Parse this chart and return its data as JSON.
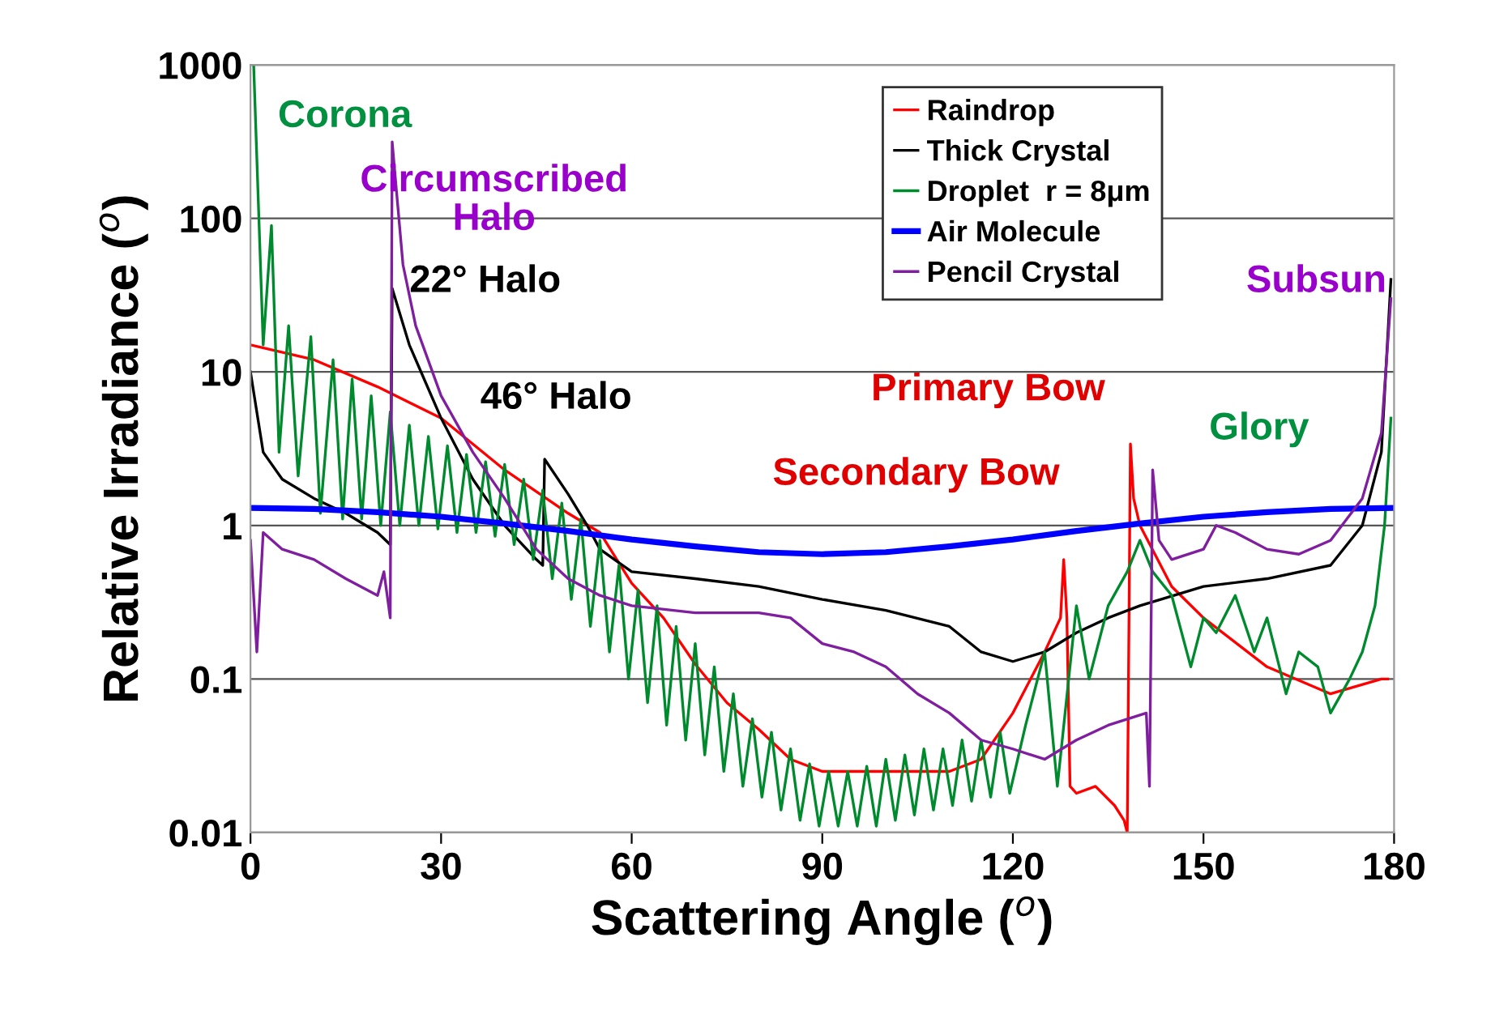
{
  "chart_data": {
    "type": "line",
    "xlabel": "Scattering Angle ($^{o}$)",
    "ylabel": "Relative Irradiance ($^{o}$)",
    "log": "y",
    "xlim": [
      0,
      180
    ],
    "ylim": [
      0.01,
      1000
    ],
    "xticks": [
      0,
      30,
      60,
      90,
      120,
      150,
      180
    ],
    "yticks": [
      0.01,
      0.1,
      1,
      10,
      100,
      1000
    ],
    "grid": "y",
    "legend": "top right",
    "line_style": "solid",
    "marker": "none",
    "series": [
      {
        "name": "Raindrop",
        "color": "#ff0000",
        "x": [
          0,
          10,
          20,
          30,
          40,
          50,
          55,
          60,
          65,
          70,
          75,
          80,
          85,
          90,
          100,
          110,
          115,
          120,
          125,
          127.5,
          128,
          128.5,
          129,
          130,
          133,
          136,
          137.5,
          138,
          138.5,
          139,
          140,
          145,
          150,
          160,
          170,
          178,
          179
        ],
        "values": [
          15,
          12,
          8,
          5,
          2.3,
          1.2,
          0.9,
          0.42,
          0.25,
          0.125,
          0.07,
          0.047,
          0.03,
          0.025,
          0.025,
          0.025,
          0.03,
          0.06,
          0.15,
          0.25,
          0.6,
          0.25,
          0.02,
          0.018,
          0.02,
          0.015,
          0.012,
          0.01,
          3.4,
          1.5,
          1,
          0.4,
          0.25,
          0.12,
          0.08,
          0.1,
          0.1
        ]
      },
      {
        "name": "Thick Crystal",
        "color": "#000000",
        "x": [
          0,
          2,
          5,
          10,
          15,
          20,
          22,
          22.3,
          25,
          30,
          35,
          40,
          45,
          46,
          46.3,
          50,
          53,
          55,
          60,
          70,
          80,
          90,
          100,
          110,
          115,
          120,
          125,
          130,
          135,
          140,
          150,
          160,
          170,
          175,
          178,
          179.5
        ],
        "values": [
          10,
          3,
          2,
          1.5,
          1.2,
          0.9,
          0.75,
          35,
          15,
          5,
          2,
          1,
          0.6,
          0.55,
          2.7,
          1.6,
          1,
          0.7,
          0.5,
          0.45,
          0.4,
          0.33,
          0.28,
          0.22,
          0.15,
          0.13,
          0.15,
          0.2,
          0.25,
          0.3,
          0.4,
          0.45,
          0.55,
          1,
          3,
          40
        ]
      },
      {
        "name": "Droplet  r = 8μm",
        "color": "#008a2e",
        "x": [
          0.5,
          2,
          3.3,
          4.5,
          6,
          7.5,
          9.5,
          11,
          13,
          14.5,
          16,
          17.5,
          19,
          20.5,
          22,
          23.5,
          25,
          26.5,
          28,
          29.5,
          31,
          32.5,
          34,
          35.5,
          37,
          38.5,
          40,
          41.5,
          43,
          44.5,
          46,
          47.5,
          49,
          50.5,
          52,
          53.5,
          55,
          56.5,
          58,
          59.5,
          61,
          62.5,
          64,
          65.5,
          67,
          68.5,
          70,
          71.5,
          73,
          74.5,
          76,
          77.5,
          79,
          80.5,
          82,
          83.5,
          85,
          86.5,
          88,
          89.5,
          91,
          92.5,
          94,
          95.5,
          97,
          98.5,
          100,
          101.5,
          103,
          104.5,
          106,
          107.5,
          109,
          110.5,
          112,
          113.5,
          115,
          116.5,
          118,
          119.5,
          122,
          125,
          127,
          130,
          132,
          135,
          138,
          140,
          142,
          145,
          148,
          150,
          152,
          155,
          158,
          160,
          163,
          165,
          168,
          170,
          173,
          175,
          177,
          178.5,
          179.5
        ],
        "values": [
          1000,
          15,
          90,
          3,
          20,
          2.1,
          17,
          1.2,
          12,
          1.1,
          9,
          1.1,
          7,
          1,
          5.5,
          1,
          4.5,
          1,
          3.8,
          0.95,
          3.3,
          0.9,
          2.9,
          0.9,
          2.6,
          0.85,
          2.5,
          0.75,
          2,
          0.6,
          1.7,
          0.45,
          1.4,
          0.33,
          1.1,
          0.22,
          0.8,
          0.15,
          0.55,
          0.1,
          0.38,
          0.07,
          0.3,
          0.05,
          0.22,
          0.04,
          0.17,
          0.032,
          0.12,
          0.025,
          0.08,
          0.02,
          0.055,
          0.017,
          0.045,
          0.014,
          0.035,
          0.012,
          0.028,
          0.011,
          0.025,
          0.011,
          0.025,
          0.011,
          0.027,
          0.011,
          0.03,
          0.012,
          0.032,
          0.013,
          0.035,
          0.014,
          0.035,
          0.015,
          0.04,
          0.016,
          0.04,
          0.017,
          0.045,
          0.018,
          0.05,
          0.15,
          0.02,
          0.3,
          0.1,
          0.3,
          0.5,
          0.8,
          0.5,
          0.35,
          0.12,
          0.25,
          0.2,
          0.35,
          0.15,
          0.25,
          0.08,
          0.15,
          0.12,
          0.06,
          0.1,
          0.15,
          0.3,
          1,
          5
        ]
      },
      {
        "name": "Air Molecule",
        "color": "#0000ff",
        "x": [
          0,
          10,
          20,
          30,
          40,
          50,
          60,
          70,
          80,
          90,
          100,
          110,
          120,
          130,
          140,
          150,
          160,
          170,
          180
        ],
        "values": [
          1.3,
          1.28,
          1.22,
          1.14,
          1.03,
          0.92,
          0.81,
          0.73,
          0.67,
          0.65,
          0.67,
          0.73,
          0.81,
          0.92,
          1.03,
          1.14,
          1.22,
          1.28,
          1.3
        ]
      },
      {
        "name": "Pencil Crystal",
        "color": "#7f1f9f",
        "x": [
          0,
          1,
          2,
          5,
          10,
          15,
          20,
          21,
          22,
          22.3,
          24,
          26,
          30,
          35,
          40,
          45,
          50,
          55,
          60,
          70,
          80,
          85,
          90,
          95,
          100,
          105,
          110,
          115,
          120,
          125,
          130,
          135,
          141,
          141.5,
          142,
          143,
          145,
          150,
          152,
          155,
          160,
          165,
          170,
          175,
          178,
          179.5
        ],
        "values": [
          0.8,
          0.15,
          0.9,
          0.7,
          0.6,
          0.45,
          0.35,
          0.5,
          0.25,
          315,
          50,
          20,
          7,
          3,
          1.5,
          0.7,
          0.45,
          0.35,
          0.3,
          0.27,
          0.27,
          0.25,
          0.17,
          0.15,
          0.12,
          0.08,
          0.06,
          0.04,
          0.035,
          0.03,
          0.04,
          0.05,
          0.06,
          0.02,
          2.3,
          0.8,
          0.6,
          0.7,
          1,
          0.9,
          0.7,
          0.65,
          0.8,
          1.5,
          4,
          30
        ]
      }
    ],
    "annotations": [
      "Corona",
      "Circumscribed\nHalo",
      "22° Halo",
      "46° Halo",
      "Primary Bow",
      "Secondary Bow",
      "Glory",
      "Subsun"
    ]
  }
}
